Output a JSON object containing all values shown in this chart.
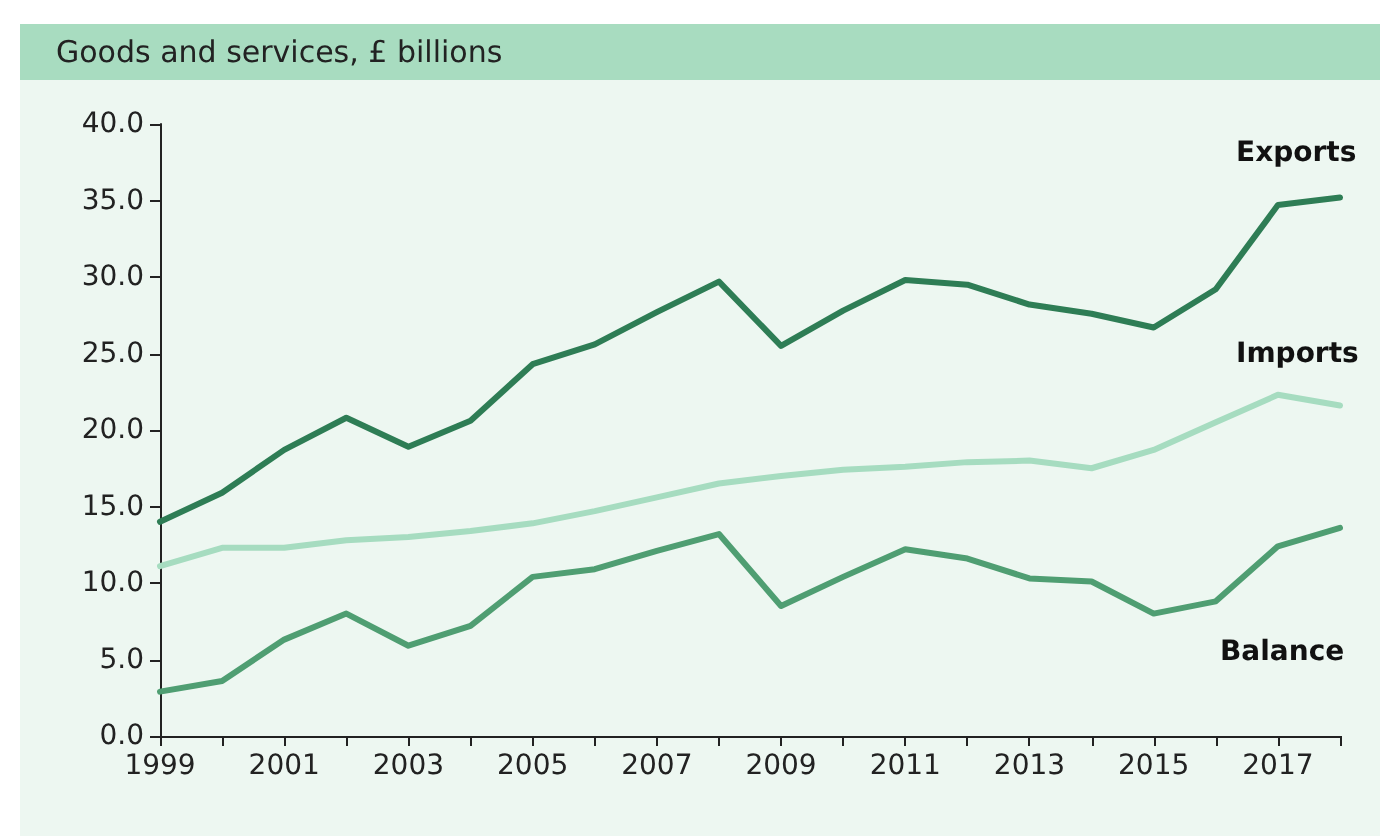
{
  "chart_data": {
    "type": "line",
    "title": "Goods and services, £ billions",
    "x": [
      1999,
      2000,
      2001,
      2002,
      2003,
      2004,
      2005,
      2006,
      2007,
      2008,
      2009,
      2010,
      2011,
      2012,
      2013,
      2014,
      2015,
      2016,
      2017,
      2018
    ],
    "series": [
      {
        "name": "Exports",
        "color": "#2e7d55",
        "values": [
          14.0,
          15.9,
          18.7,
          20.8,
          18.9,
          20.6,
          24.3,
          25.6,
          27.7,
          29.7,
          25.5,
          27.8,
          29.8,
          29.5,
          28.2,
          27.6,
          26.7,
          29.2,
          34.7,
          35.2
        ]
      },
      {
        "name": "Imports",
        "color": "#a6dcc0",
        "values": [
          11.1,
          12.3,
          12.3,
          12.8,
          13.0,
          13.4,
          13.9,
          14.7,
          15.6,
          16.5,
          17.0,
          17.4,
          17.6,
          17.9,
          18.0,
          17.5,
          18.7,
          20.5,
          22.3,
          21.6
        ]
      },
      {
        "name": "Balance",
        "color": "#4f9e72",
        "values": [
          2.9,
          3.6,
          6.3,
          8.0,
          5.9,
          7.2,
          10.4,
          10.9,
          12.1,
          13.2,
          8.5,
          10.4,
          12.2,
          11.6,
          10.3,
          10.1,
          8.0,
          8.8,
          12.4,
          13.6
        ]
      }
    ],
    "xlim": [
      1999,
      2018
    ],
    "xticks": [
      1999,
      {
        "value": 2000,
        "label": null
      },
      2001,
      {
        "value": 2002,
        "label": null
      },
      2003,
      {
        "value": 2004,
        "label": null
      },
      2005,
      {
        "value": 2006,
        "label": null
      },
      2007,
      {
        "value": 2008,
        "label": null
      },
      2009,
      {
        "value": 2010,
        "label": null
      },
      2011,
      {
        "value": 2012,
        "label": null
      },
      2013,
      {
        "value": 2014,
        "label": null
      },
      2015,
      {
        "value": 2016,
        "label": null
      },
      2017,
      {
        "value": 2018,
        "label": null
      }
    ],
    "ylim": [
      0,
      40
    ],
    "yticks": [
      {
        "value": 0,
        "label": "0.0"
      },
      {
        "value": 5,
        "label": "5.0"
      },
      {
        "value": 10,
        "label": "10.0"
      },
      {
        "value": 15,
        "label": "15.0"
      },
      {
        "value": 20,
        "label": "20.0"
      },
      {
        "value": 25,
        "label": "25.0"
      },
      {
        "value": 30,
        "label": "30.0"
      },
      {
        "value": 35,
        "label": "35.0"
      },
      {
        "value": 40,
        "label": "40.0"
      }
    ],
    "grid": false,
    "legend": false,
    "marker": "none",
    "line_style": "solid"
  }
}
